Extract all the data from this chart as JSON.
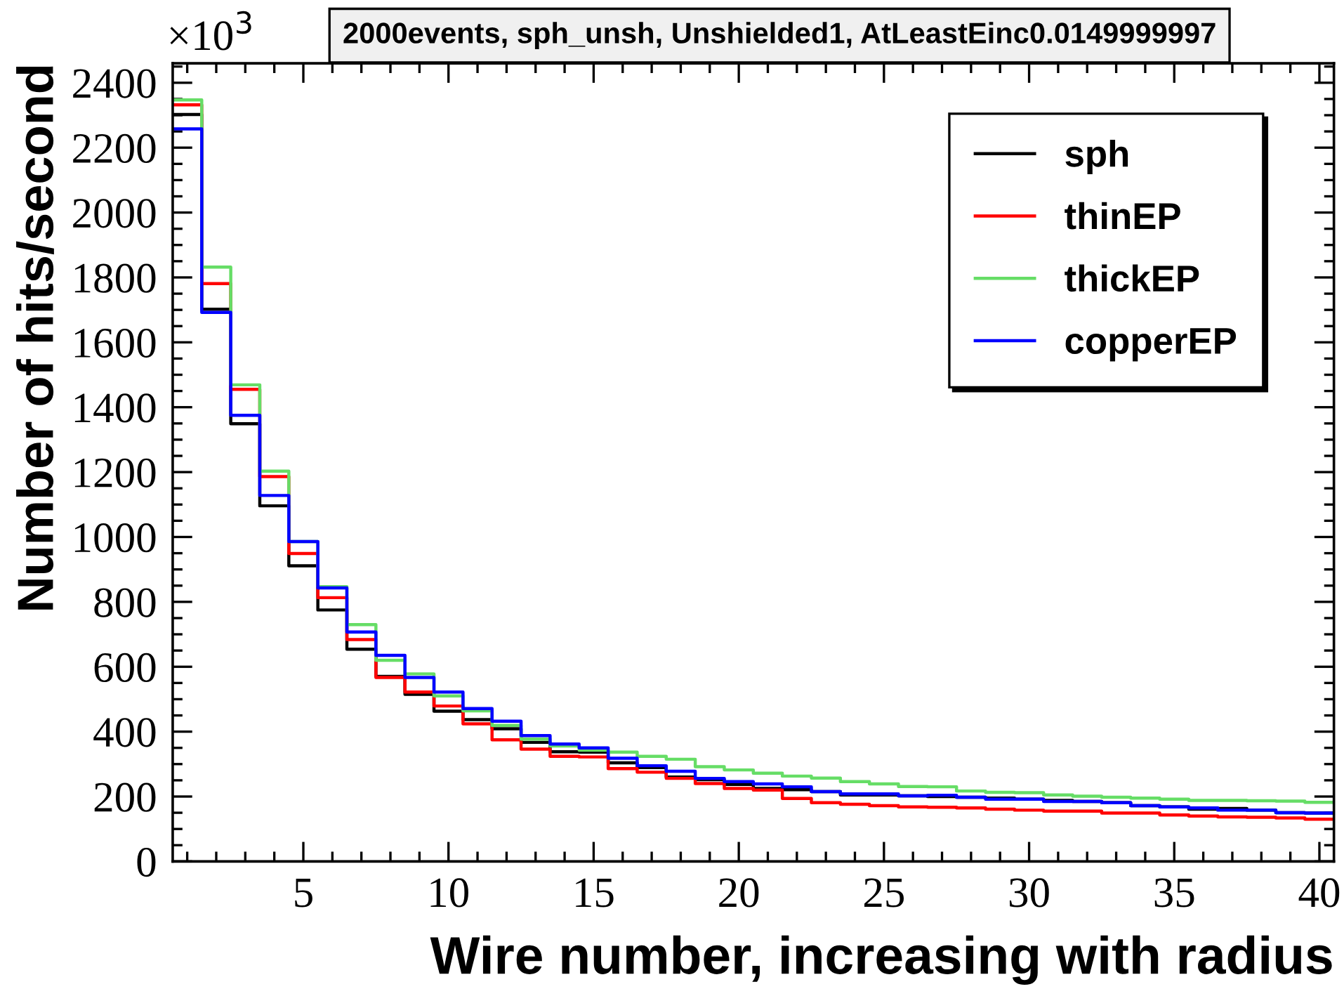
{
  "chart_data": {
    "type": "histogram",
    "title": "2000events, sph_unsh, Unshielded1, AtLeastEinc0.0149999997",
    "xlabel": "Wire number, increasing with radius",
    "ylabel": "Number of hits/second",
    "annotations": [
      "×10$^{3}$"
    ],
    "bins": [
      0.5,
      1.5,
      2.5,
      3.5,
      4.5,
      5.5,
      6.5,
      7.5,
      8.5,
      9.5,
      10.5,
      11.5,
      12.5,
      13.5,
      14.5,
      15.5,
      16.5,
      17.5,
      18.5,
      19.5,
      20.5,
      21.5,
      22.5,
      23.5,
      24.5,
      25.5,
      26.5,
      27.5,
      28.5,
      29.5,
      30.5,
      31.5,
      32.5,
      33.5,
      34.5,
      35.5,
      36.5,
      37.5,
      38.5,
      39.5,
      40.5
    ],
    "series": [
      {
        "name": "sph",
        "color": "#000000",
        "values": [
          2302,
          1702,
          1349,
          1096,
          911,
          775,
          654,
          570,
          515,
          463,
          437,
          409,
          367,
          338,
          337,
          304,
          289,
          260,
          252,
          237,
          225,
          221,
          215,
          205,
          205,
          202,
          200,
          198,
          195,
          192,
          188,
          185,
          181,
          172,
          168,
          161,
          163,
          158,
          150,
          149
        ]
      },
      {
        "name": "thinEP",
        "color": "#ff0000",
        "values": [
          2332,
          1781,
          1455,
          1186,
          949,
          813,
          684,
          567,
          522,
          479,
          424,
          375,
          346,
          324,
          322,
          286,
          275,
          256,
          240,
          225,
          220,
          194,
          181,
          176,
          172,
          168,
          167,
          165,
          161,
          158,
          155,
          155,
          149,
          149,
          143,
          140,
          137,
          136,
          134,
          130
        ]
      },
      {
        "name": "thickEP",
        "color": "#66dd66",
        "values": [
          2347,
          1832,
          1469,
          1203,
          986,
          847,
          730,
          620,
          578,
          510,
          464,
          419,
          377,
          356,
          343,
          337,
          324,
          315,
          292,
          282,
          272,
          263,
          257,
          246,
          239,
          231,
          230,
          217,
          213,
          212,
          205,
          201,
          198,
          195,
          192,
          188,
          188,
          187,
          186,
          182
        ]
      },
      {
        "name": "copperEP",
        "color": "#0000ff",
        "values": [
          2258,
          1692,
          1375,
          1128,
          986,
          843,
          707,
          635,
          567,
          522,
          471,
          432,
          388,
          362,
          350,
          318,
          295,
          278,
          256,
          246,
          239,
          230,
          215,
          208,
          208,
          202,
          204,
          198,
          192,
          192,
          185,
          185,
          181,
          172,
          168,
          165,
          158,
          158,
          150,
          149
        ]
      }
    ],
    "xlim": [
      0.5,
      40.5
    ],
    "xticks": [
      5,
      10,
      15,
      20,
      25,
      30,
      35,
      40
    ],
    "ylim": [
      0,
      2460
    ],
    "yticks": [
      0,
      200,
      400,
      600,
      800,
      1000,
      1200,
      1400,
      1600,
      1800,
      2000,
      2200,
      2400
    ],
    "grid": false,
    "legend": "top right"
  }
}
